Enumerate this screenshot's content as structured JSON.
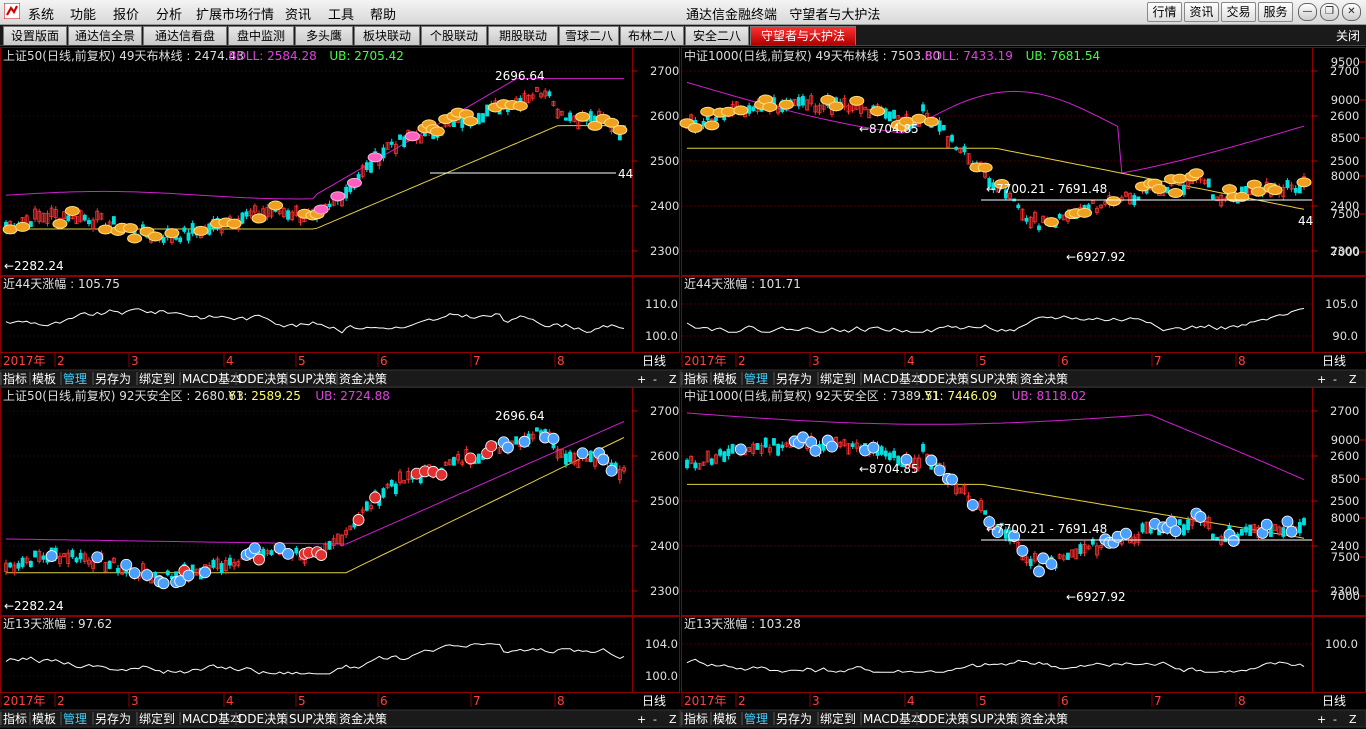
{
  "menubar": {
    "items": [
      "系统",
      "功能",
      "报价",
      "分析",
      "扩展市场行情",
      "资讯",
      "工具",
      "帮助"
    ],
    "app_title": "通达信金融终端",
    "page_title": "守望者与大护法",
    "buttons": [
      "行情",
      "资讯",
      "交易",
      "服务"
    ]
  },
  "tabs": [
    "设置版面",
    "通达信全景",
    "通达信看盘",
    "盘中监测",
    "多头鹰",
    "板块联动",
    "个股联动",
    "期股联动",
    "雪球二八",
    "布林二八",
    "安全二八",
    "守望者与大护法"
  ],
  "active_tab": "守望者与大护法",
  "close_label": "关闭",
  "panel_toolbar": [
    "指标",
    "模板",
    "管理",
    "另存为",
    "绑定到",
    "MACD基本",
    "DDE决策",
    "SUP决策",
    "资金决策"
  ],
  "zoom_buttons": [
    "+",
    "-",
    "Z"
  ],
  "timeframe": "日线",
  "panels": [
    {
      "id": "tl",
      "title": "上证50(日线,前复权) 49天布林线 : 2474.43",
      "ind1": "BOLL: 2584.28",
      "ind2": "UB: 2705.42",
      "high_label": "2696.64",
      "low_label": "2282.24",
      "line_label": "44",
      "sub_title": "近44天涨幅 : 105.75",
      "price_ticks": [
        "2700",
        "2600",
        "2500",
        "2400",
        "2300"
      ],
      "sub_ticks": [
        "110.0",
        "100.0"
      ],
      "x_labels": [
        "2017年",
        "2",
        "3",
        "4",
        "5",
        "6",
        "7",
        "8"
      ],
      "marker_style": "coins",
      "band": "boll"
    },
    {
      "id": "tr",
      "title": "中证1000(日线,前复权) 49天布林线 : 7503.80",
      "ind1": "BOLL: 7433.19",
      "ind2": "UB: 7681.54",
      "high_label": "8704.85",
      "low_label": "6927.92",
      "range_label": "7700.21 - 7691.48",
      "line_label": "44",
      "sub_title": "近44天涨幅 : 101.71",
      "price_ticks": [
        "2700",
        "2600",
        "2500",
        "2400",
        "2300"
      ],
      "right_ticks": [
        "9500",
        "9000",
        "8500",
        "8000",
        "7500",
        "7000"
      ],
      "sub_ticks": [
        "105.0",
        "90.0"
      ],
      "x_labels": [
        "2017年",
        "2",
        "3",
        "4",
        "5",
        "6",
        "7",
        "8"
      ],
      "marker_style": "coins",
      "band": "boll"
    },
    {
      "id": "bl",
      "title": "上证50(日线,前复权) 92天安全区 : 2680.63",
      "ind1": "Y1: 2589.25",
      "ind2": "UB: 2724.88",
      "high_label": "2696.64",
      "low_label": "2282.24",
      "sub_title": "近13天涨幅 : 97.62",
      "price_ticks": [
        "2700",
        "2600",
        "2500",
        "2400",
        "2300"
      ],
      "sub_ticks": [
        "104.0",
        "100.0"
      ],
      "x_labels": [
        "2017年",
        "2",
        "3",
        "4",
        "5",
        "6",
        "7",
        "8"
      ],
      "marker_style": "balls",
      "band": "safe"
    },
    {
      "id": "br",
      "title": "中证1000(日线,前复权) 92天安全区 : 7389.51",
      "ind1": "Y1: 7446.09",
      "ind2": "UB: 8118.02",
      "high_label": "8704.85",
      "low_label": "6927.92",
      "range_label": "7700.21 - 7691.48",
      "sub_title": "近13天涨幅 : 103.28",
      "price_ticks": [
        "2700",
        "2600",
        "2500",
        "2400",
        "2300"
      ],
      "right_ticks": [
        "9000",
        "8500",
        "8000",
        "7500",
        "7000"
      ],
      "sub_ticks": [
        "100.0"
      ],
      "x_labels": [
        "2017年",
        "2",
        "3",
        "4",
        "5",
        "6",
        "7",
        "8"
      ],
      "marker_style": "balls",
      "band": "safe"
    }
  ],
  "colors": {
    "up": "#ff3333",
    "down": "#00e0e0",
    "grid": "#8b0000",
    "upper_band": "#d020d0",
    "mid_band": "#e0d040",
    "text_title": "#dcdcdc",
    "ind_magenta": "#e040e0",
    "ind_green": "#40ff40",
    "ind_yellow": "#ffff60"
  }
}
